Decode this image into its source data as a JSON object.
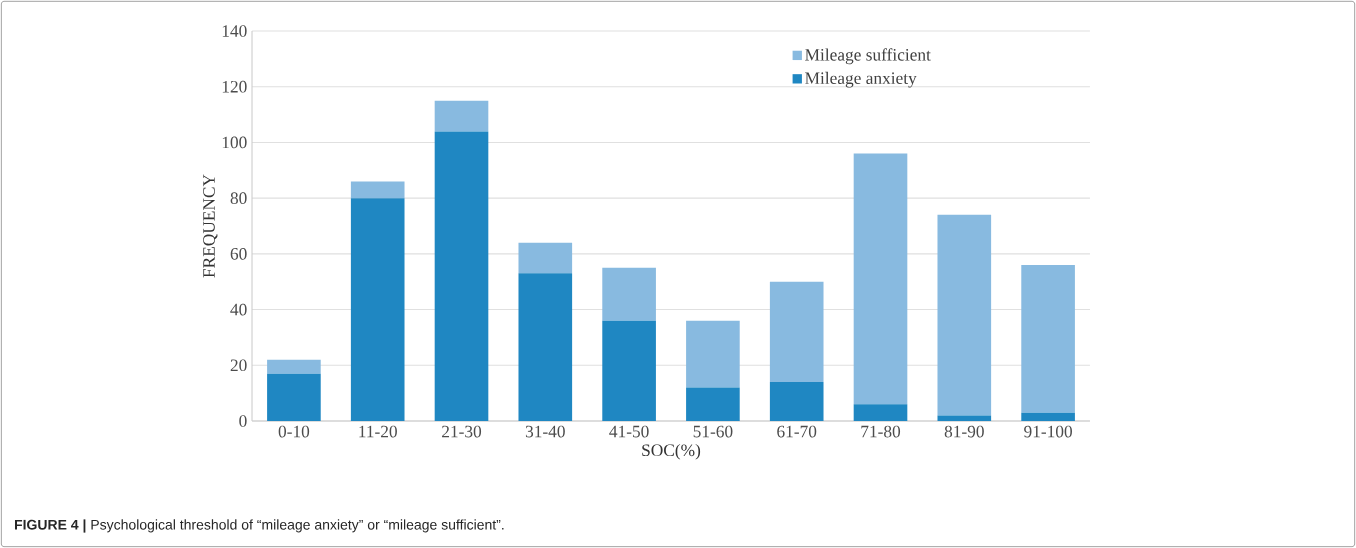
{
  "chart_data": {
    "type": "bar",
    "title": "**FIGURE 4 |** Psychological threshold of “mileage anxiety” or “mileage sufficient”.",
    "xlabel": "SOC(%)",
    "ylabel": "FREQUENCY",
    "categories": [
      "0-10",
      "11-20",
      "21-30",
      "31-40",
      "41-50",
      "51-60",
      "61-70",
      "71-80",
      "81-90",
      "91-100"
    ],
    "stacked": true,
    "series": [
      {
        "name": "Mileage anxiety",
        "color": "#1f87c2",
        "values": [
          17,
          80,
          104,
          53,
          36,
          12,
          14,
          6,
          2,
          3
        ]
      },
      {
        "name": "Mileage sufficient",
        "color": "#88bae0",
        "values": [
          5,
          6,
          11,
          11,
          19,
          24,
          36,
          90,
          72,
          53
        ]
      }
    ],
    "ylim": [
      0,
      140
    ],
    "yticks": [
      0,
      20,
      40,
      60,
      80,
      100,
      120,
      140
    ],
    "grid": "y",
    "legend": "top right"
  }
}
